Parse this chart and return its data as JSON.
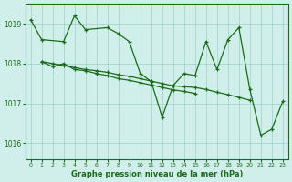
{
  "title": "Graphe pression niveau de la mer (hPa)",
  "bg_color": "#d0eeea",
  "grid_color": "#a8d8d0",
  "line_color": "#1a6b1a",
  "xlim": [
    -0.5,
    23.5
  ],
  "ylim": [
    1015.6,
    1019.5
  ],
  "yticks": [
    1016,
    1017,
    1018,
    1019
  ],
  "xticks": [
    0,
    1,
    2,
    3,
    4,
    5,
    6,
    7,
    8,
    9,
    10,
    11,
    12,
    13,
    14,
    15,
    16,
    17,
    18,
    19,
    20,
    21,
    22,
    23
  ],
  "line1_x": [
    0,
    1,
    3,
    4,
    5,
    7,
    8,
    9,
    10,
    11,
    12,
    13,
    14,
    15,
    16,
    17,
    18,
    19,
    20,
    21,
    22,
    23
  ],
  "line1_y": [
    1019.1,
    1018.6,
    1018.55,
    1019.2,
    1018.85,
    1018.9,
    1018.75,
    1018.55,
    1017.75,
    1017.55,
    1016.65,
    1017.45,
    1017.75,
    1017.7,
    1018.55,
    1017.85,
    1018.6,
    1018.9,
    1017.35,
    1016.2,
    1016.35,
    1017.05
  ],
  "line2_x": [
    1,
    2,
    3,
    4,
    5,
    6,
    7,
    8,
    9,
    10,
    11,
    12,
    13,
    14,
    15,
    16,
    17,
    18,
    19,
    20
  ],
  "line2_y": [
    1018.05,
    1018.0,
    1017.95,
    1017.9,
    1017.85,
    1017.82,
    1017.78,
    1017.72,
    1017.68,
    1017.62,
    1017.56,
    1017.5,
    1017.44,
    1017.42,
    1017.4,
    1017.35,
    1017.28,
    1017.22,
    1017.15,
    1017.08
  ],
  "line3_x": [
    1,
    2,
    3,
    4,
    5,
    6,
    7,
    8,
    9,
    10,
    11,
    12,
    13,
    14,
    15
  ],
  "line3_y": [
    1018.05,
    1017.92,
    1018.0,
    1017.85,
    1017.82,
    1017.75,
    1017.7,
    1017.62,
    1017.58,
    1017.52,
    1017.46,
    1017.4,
    1017.34,
    1017.3,
    1017.25
  ]
}
